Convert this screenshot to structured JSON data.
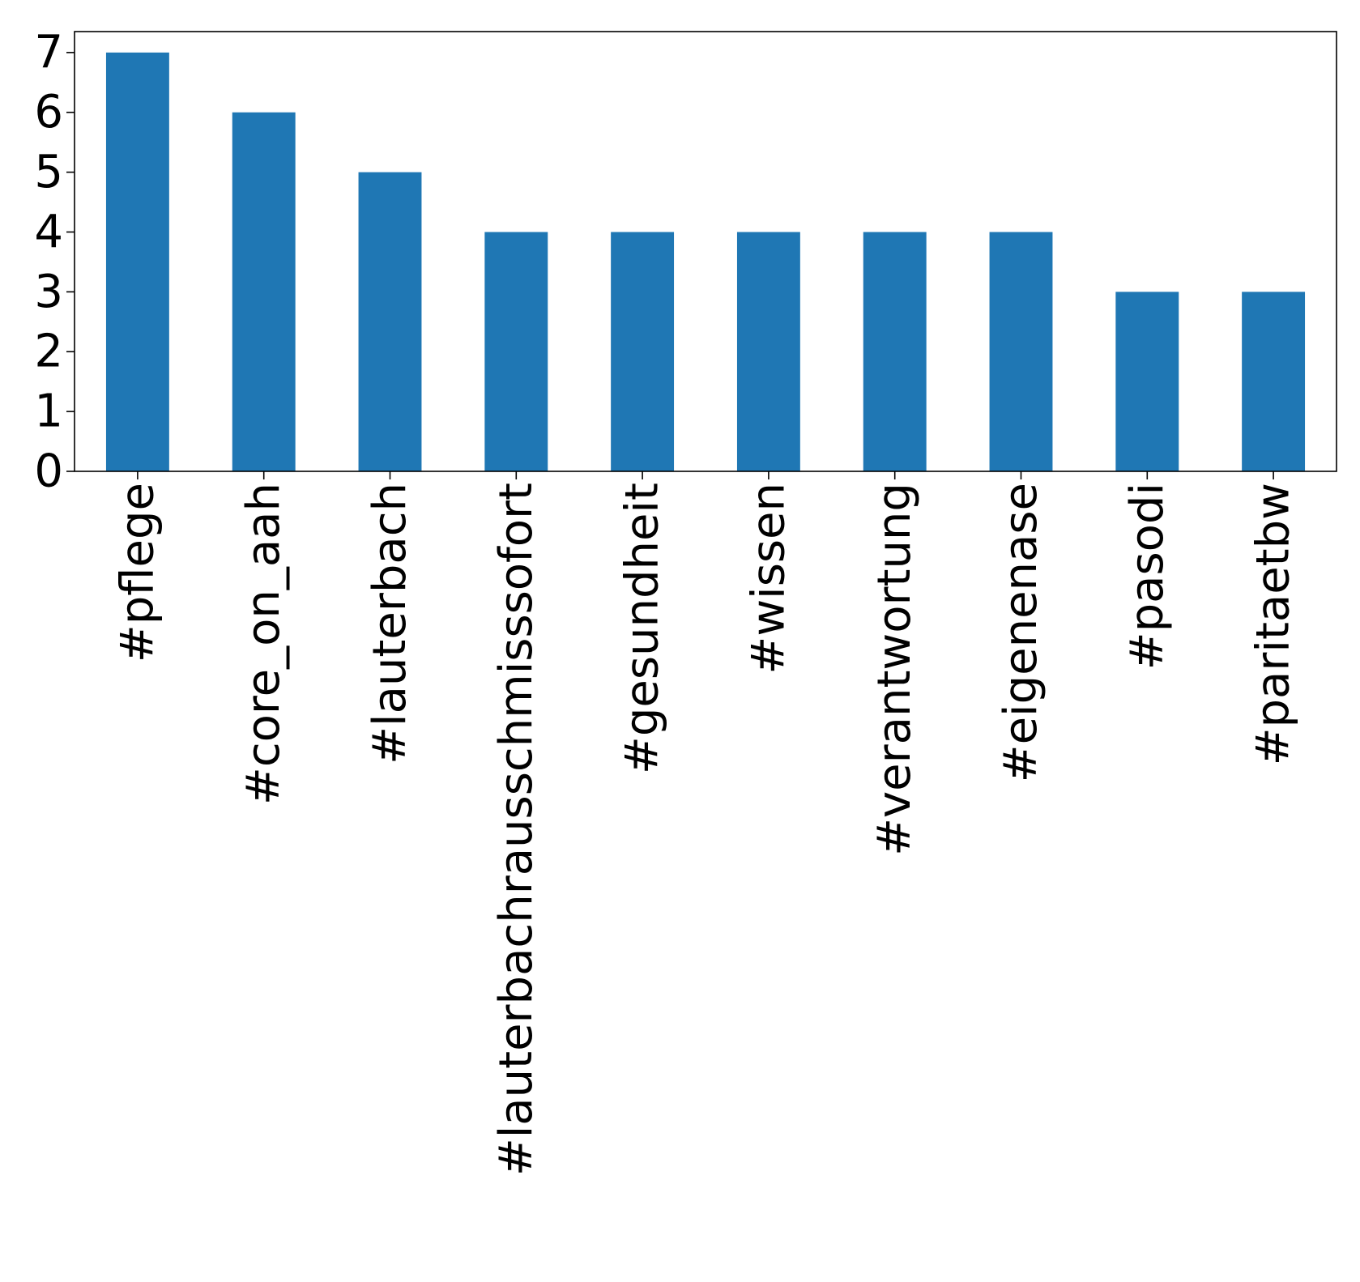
{
  "chart_data": {
    "type": "bar",
    "title": "",
    "xlabel": "",
    "ylabel": "",
    "categories": [
      "#pflege",
      "#core_on_aah",
      "#lauterbach",
      "#lauterbachrausschmisssofort",
      "#gesundheit",
      "#wissen",
      "#verantwortung",
      "#eigenenase",
      "#pasodi",
      "#paritaetbw"
    ],
    "values": [
      7,
      6,
      5,
      4,
      4,
      4,
      4,
      4,
      3,
      3
    ],
    "ylim": [
      0,
      7.35
    ],
    "yticks": [
      "0",
      "1",
      "2",
      "3",
      "4",
      "5",
      "6",
      "7"
    ],
    "bar_color": "#1f77b4",
    "grid": false,
    "legend": "none"
  }
}
